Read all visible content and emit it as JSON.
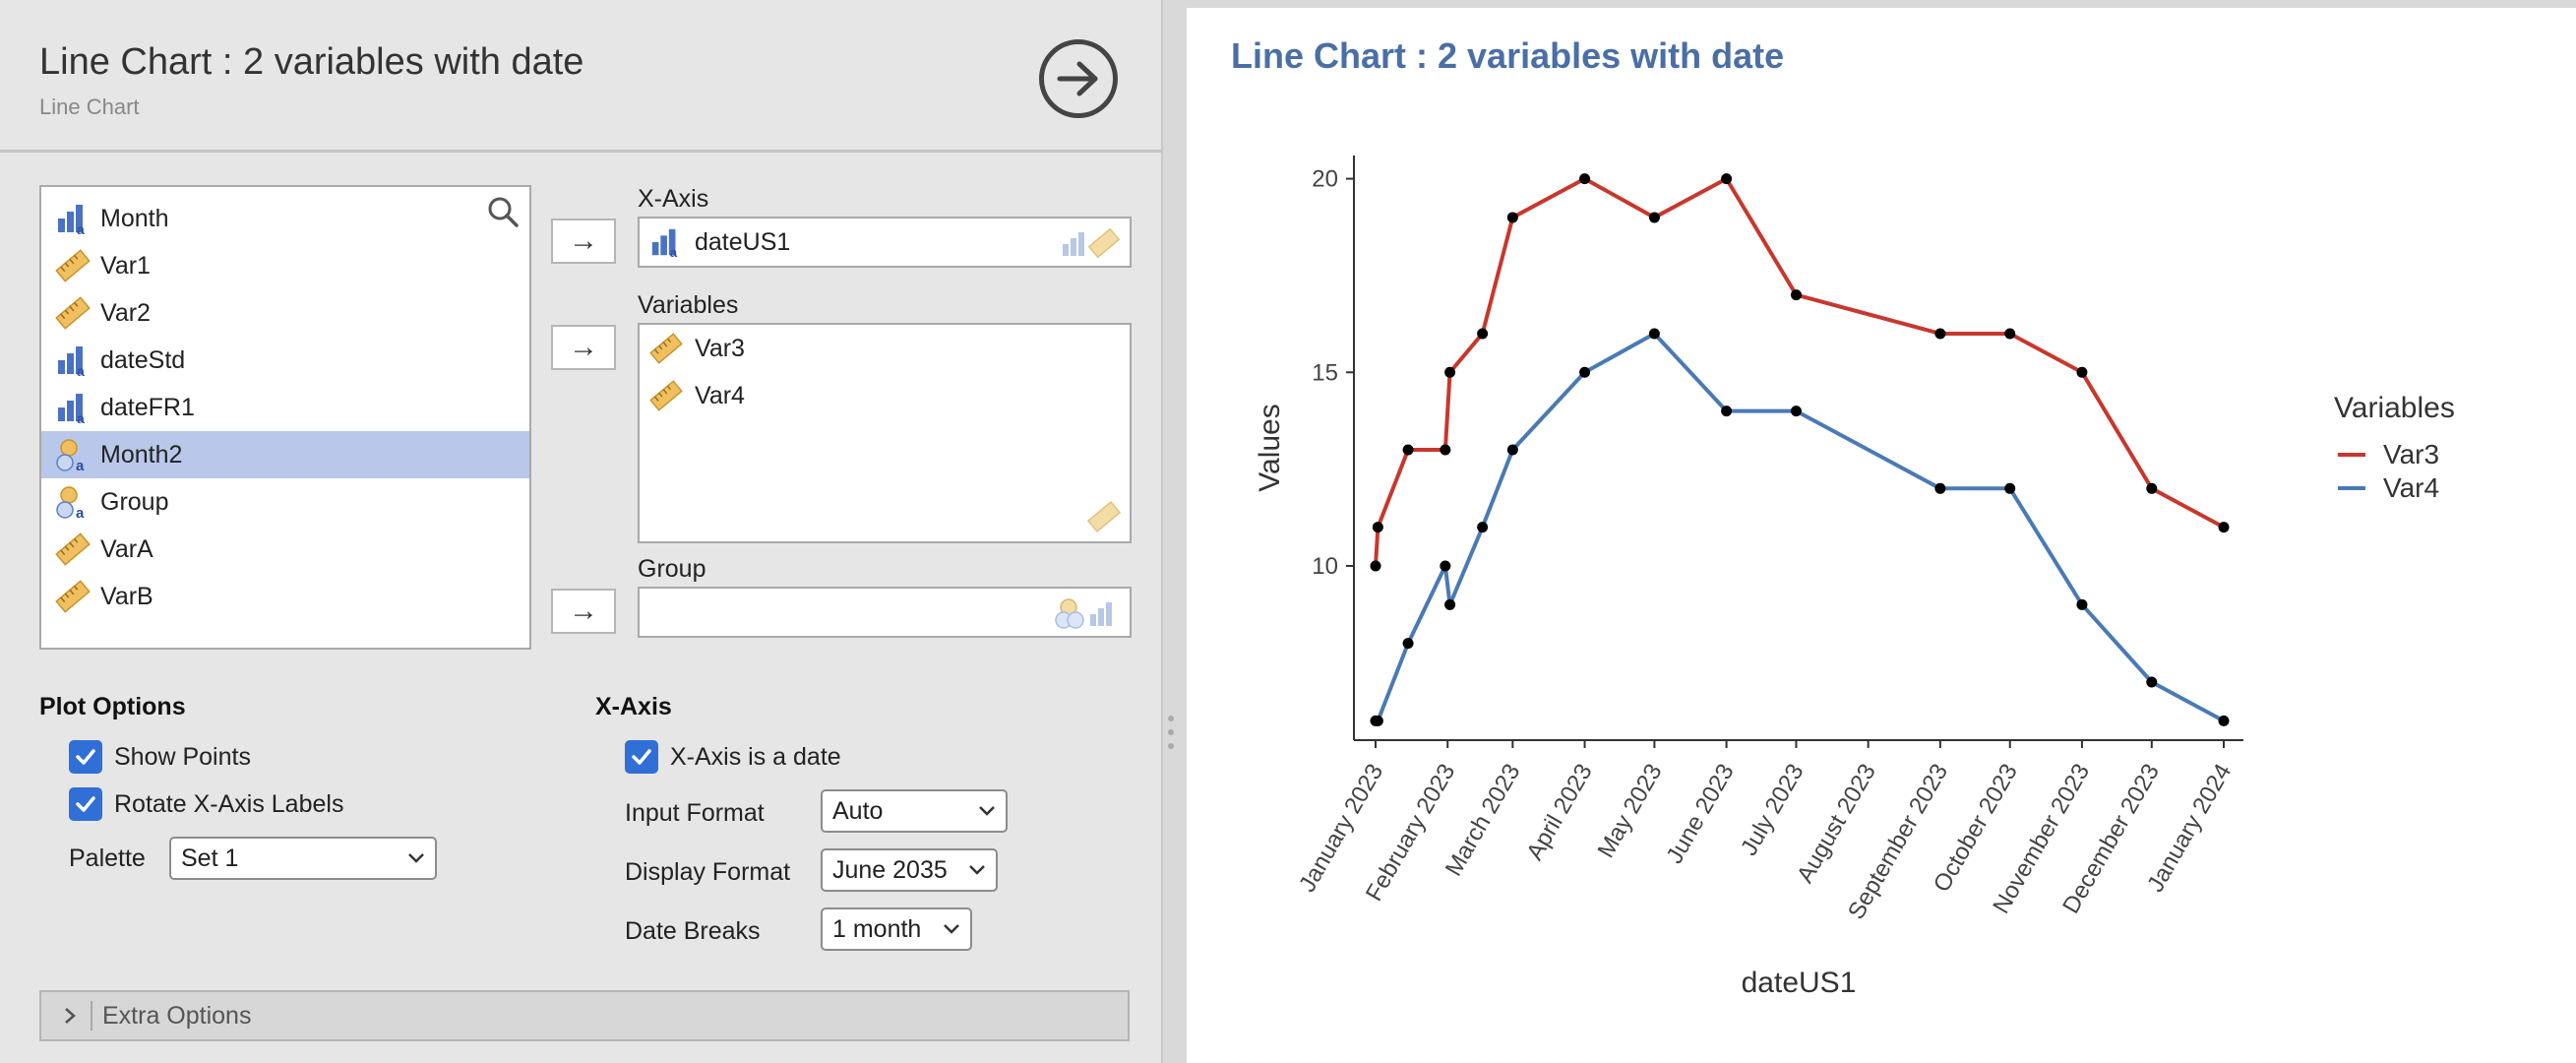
{
  "panel": {
    "title": "Line Chart : 2 variables with date",
    "subtitle": "Line Chart"
  },
  "variables_list": [
    {
      "name": "Month",
      "type": "nominal-bar"
    },
    {
      "name": "Var1",
      "type": "continuous-ruler"
    },
    {
      "name": "Var2",
      "type": "continuous-ruler"
    },
    {
      "name": "dateStd",
      "type": "nominal-bar"
    },
    {
      "name": "dateFR1",
      "type": "nominal-bar"
    },
    {
      "name": "Month2",
      "type": "nominal-text",
      "selected": true
    },
    {
      "name": "Group",
      "type": "nominal-text"
    },
    {
      "name": "VarA",
      "type": "continuous-ruler"
    },
    {
      "name": "VarB",
      "type": "continuous-ruler"
    }
  ],
  "xaxis_box": {
    "label": "X-Axis",
    "value": "dateUS1"
  },
  "variables_box": {
    "label": "Variables",
    "items": [
      "Var3",
      "Var4"
    ]
  },
  "group_box": {
    "label": "Group",
    "value": ""
  },
  "plot_options": {
    "heading": "Plot Options",
    "show_points": {
      "label": "Show Points",
      "checked": true
    },
    "rotate_labels": {
      "label": "Rotate X-Axis Labels",
      "checked": true
    },
    "palette": {
      "label": "Palette",
      "value": "Set 1"
    }
  },
  "xaxis_options": {
    "heading": "X-Axis",
    "is_date": {
      "label": "X-Axis is a date",
      "checked": true
    },
    "input_format": {
      "label": "Input Format",
      "value": "Auto"
    },
    "display_format": {
      "label": "Display Format",
      "value": "June 2035"
    },
    "date_breaks": {
      "label": "Date Breaks",
      "value": "1 month"
    }
  },
  "extra_options": {
    "label": "Extra Options"
  },
  "results": {
    "title": "Line Chart : 2 variables with date"
  },
  "colors": {
    "accent": "#2f6fd6",
    "title": "#4a6fa5",
    "var3": "#c8372d",
    "var4": "#4a7ab5",
    "selected": "#b9c8ea"
  },
  "chart_data": {
    "type": "line",
    "xlabel": "dateUS1",
    "ylabel": "Values",
    "legend_title": "Variables",
    "legend_position": "right",
    "grid": false,
    "points": true,
    "xlim": [
      "2023-01-01",
      "2024-01-01"
    ],
    "ylim": [
      5.5,
      20.6
    ],
    "y_ticks": [
      10,
      15,
      20
    ],
    "x_ticks": [
      {
        "date": "2023-01-01",
        "label": "January 2023"
      },
      {
        "date": "2023-02-01",
        "label": "February 2023"
      },
      {
        "date": "2023-03-01",
        "label": "March 2023"
      },
      {
        "date": "2023-04-01",
        "label": "April 2023"
      },
      {
        "date": "2023-05-01",
        "label": "May 2023"
      },
      {
        "date": "2023-06-01",
        "label": "June 2023"
      },
      {
        "date": "2023-07-01",
        "label": "July 2023"
      },
      {
        "date": "2023-08-01",
        "label": "August 2023"
      },
      {
        "date": "2023-09-01",
        "label": "September 2023"
      },
      {
        "date": "2023-10-01",
        "label": "October 2023"
      },
      {
        "date": "2023-11-01",
        "label": "November 2023"
      },
      {
        "date": "2023-12-01",
        "label": "December 2023"
      },
      {
        "date": "2024-01-01",
        "label": "January 2024"
      }
    ],
    "x": [
      "2023-01-01",
      "2023-01-02",
      "2023-01-15",
      "2023-01-31",
      "2023-02-02",
      "2023-02-16",
      "2023-03-01",
      "2023-04-01",
      "2023-05-01",
      "2023-06-01",
      "2023-07-01",
      "2023-09-01",
      "2023-10-01",
      "2023-11-01",
      "2023-12-01",
      "2024-01-01"
    ],
    "series": [
      {
        "name": "Var3",
        "color": "#c8372d",
        "values": [
          10,
          11,
          13,
          13,
          15,
          16,
          19,
          20,
          19,
          20,
          17,
          16,
          16,
          15,
          12,
          11
        ]
      },
      {
        "name": "Var4",
        "color": "#4a7ab5",
        "values": [
          6,
          6,
          8,
          10,
          9,
          11,
          13,
          15,
          16,
          14,
          14,
          12,
          12,
          9,
          7,
          6
        ]
      }
    ]
  }
}
